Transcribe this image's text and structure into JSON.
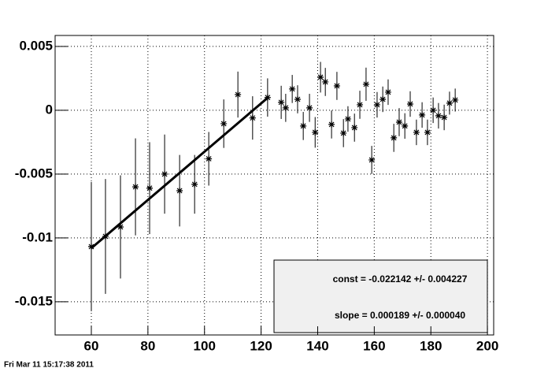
{
  "chart_data": {
    "type": "scatter",
    "timestamp": "Fri Mar 11 15:17:38 2011",
    "x": [
      60,
      65,
      70.3,
      75.6,
      80.6,
      85.9,
      91.2,
      96.5,
      101.5,
      106.8,
      111.8,
      117,
      122.3,
      127.1,
      128.7,
      131.0,
      132.9,
      134.9,
      137.1,
      139.1,
      141.0,
      142.7,
      144.9,
      146.8,
      149.1,
      150.7,
      153.0,
      154.9,
      157.1,
      159.1,
      161.0,
      163.0,
      164.9,
      166.9,
      168.8,
      170.8,
      172.7,
      174.9,
      176.9,
      178.8,
      180.8,
      182.7,
      184.7,
      186.6,
      188.6
    ],
    "series": [
      {
        "color": "#000000",
        "values": [
          -0.01068,
          -0.00988,
          -0.00914,
          -0.006,
          -0.0061,
          -0.005,
          -0.0063,
          -0.0058,
          -0.0038,
          -0.00105,
          0.00123,
          -0.0006,
          0.001,
          0.00062,
          0.00019,
          0.00167,
          0.00086,
          -0.00123,
          0.00019,
          -0.00173,
          0.00259,
          0.00222,
          -0.00111,
          0.00191,
          -0.00179,
          -0.00068,
          -0.00136,
          0.00043,
          0.00204,
          -0.00389,
          0.00043,
          0.00086,
          0.00142,
          -0.00216,
          -0.00093,
          -0.00123,
          0.00049,
          -0.00173,
          -0.00037,
          -0.00173,
          0.0,
          -0.00043,
          -0.00056,
          0.00056,
          0.0008
        ],
        "errors": [
          0.00506,
          0.0045,
          0.00404,
          0.0038,
          0.0036,
          0.0031,
          0.0028,
          0.0023,
          0.0021,
          0.0019,
          0.0018,
          0.0017,
          0.0015,
          0.0013,
          0.0011,
          0.0011,
          0.0011,
          0.0011,
          0.0011,
          0.0012,
          0.0012,
          0.0011,
          0.0011,
          0.0011,
          0.0011,
          0.001,
          0.0011,
          0.0011,
          0.0013,
          0.0011,
          0.001,
          0.001,
          0.001,
          0.0011,
          0.0011,
          0.001,
          0.001,
          0.001,
          0.001,
          0.001,
          0.001,
          0.001,
          0.001,
          0.0009,
          0.0009
        ]
      }
    ],
    "fit": {
      "const": -0.022142,
      "slope": 0.000189,
      "range": [
        60,
        122.3
      ],
      "color": "#000000"
    },
    "stats": [
      "const = -0.022142 +/- 0.004227",
      "slope = 0.000189 +/- 0.000040"
    ],
    "xlim": [
      47.2,
      202.2
    ],
    "ylim": [
      -0.0176,
      0.00586
    ],
    "xticks": [
      60,
      80,
      100,
      120,
      140,
      160,
      180,
      200
    ],
    "yticks": [
      0.005,
      0,
      -0.005,
      -0.01,
      -0.015
    ],
    "grid": true
  }
}
